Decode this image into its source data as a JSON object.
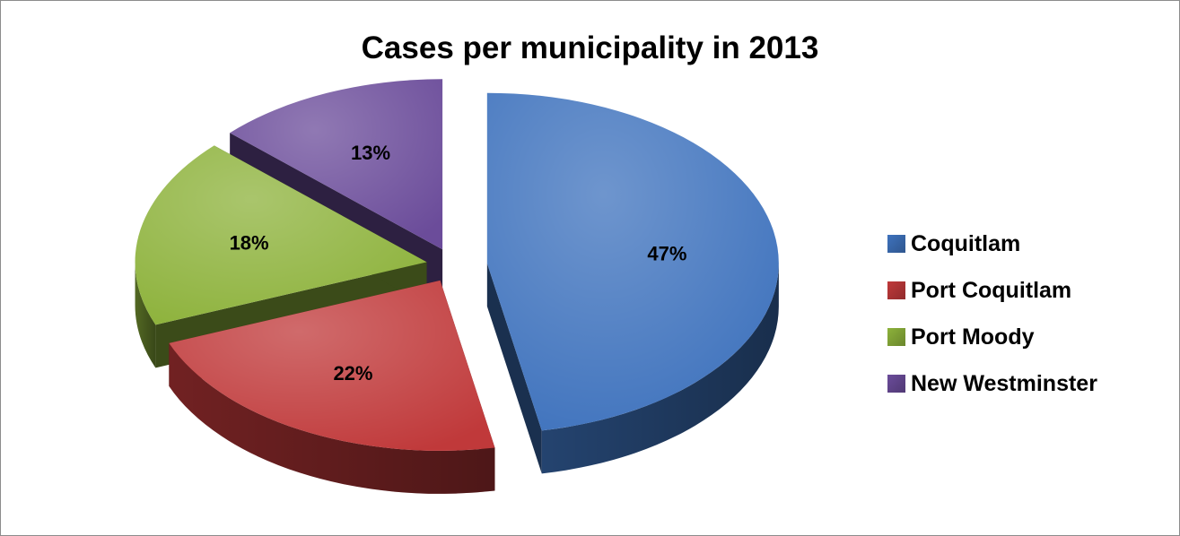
{
  "chart_data": {
    "type": "pie",
    "title": "Cases per municipality in 2013",
    "categories": [
      "Coquitlam",
      "Port Coquitlam",
      "Port Moody",
      "New Westminster"
    ],
    "values": [
      47,
      22,
      18,
      13
    ],
    "labels": [
      "47%",
      "22%",
      "18%",
      "13%"
    ],
    "colors": [
      "#3e72bd",
      "#c0393a",
      "#8db23b",
      "#6b4c9a"
    ],
    "exploded": true,
    "three_d": true,
    "legend_position": "right"
  }
}
